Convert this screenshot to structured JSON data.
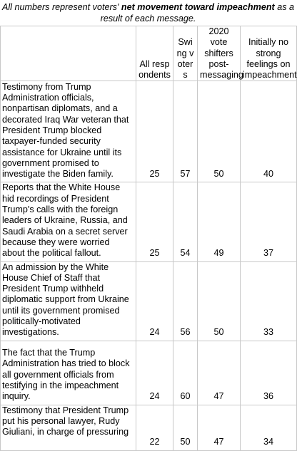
{
  "caption": {
    "prefix": "All numbers represent voters' ",
    "bold": "net movement toward impeachment",
    "suffix": " as a result of each message."
  },
  "columns": [
    "All respondents",
    "Swing voters",
    "2020 vote shifters post-messaging",
    "Initially no strong feelings on impeachment"
  ],
  "rows": [
    {
      "message": "Testimony from Trump Administration officials, nonpartisan diplomats, and a decorated Iraq War veteran that President Trump blocked taxpayer-funded security assistance for Ukraine until its government promised to investigate the Biden family.",
      "values": [
        "25",
        "57",
        "50",
        "40"
      ]
    },
    {
      "message": "Reports that the White House hid recordings of President Trump's calls with the foreign leaders of Ukraine, Russia, and Saudi Arabia on a secret server because they were worried about the political fallout.",
      "values": [
        "25",
        "54",
        "49",
        "37"
      ]
    },
    {
      "message": "An admission by the White House Chief of Staff that President Trump withheld diplomatic support from Ukraine until its government promised politically-motivated investigations.",
      "values": [
        "24",
        "56",
        "50",
        "33"
      ]
    },
    {
      "message": "The fact that the Trump Administration has tried to block all government officials from testifying in the impeachment inquiry.",
      "values": [
        "24",
        "60",
        "47",
        "36"
      ]
    },
    {
      "message": "Testimony that President Trump put his personal lawyer, Rudy Giuliani, in charge of pressuring",
      "values": [
        "22",
        "50",
        "47",
        "34"
      ]
    }
  ]
}
